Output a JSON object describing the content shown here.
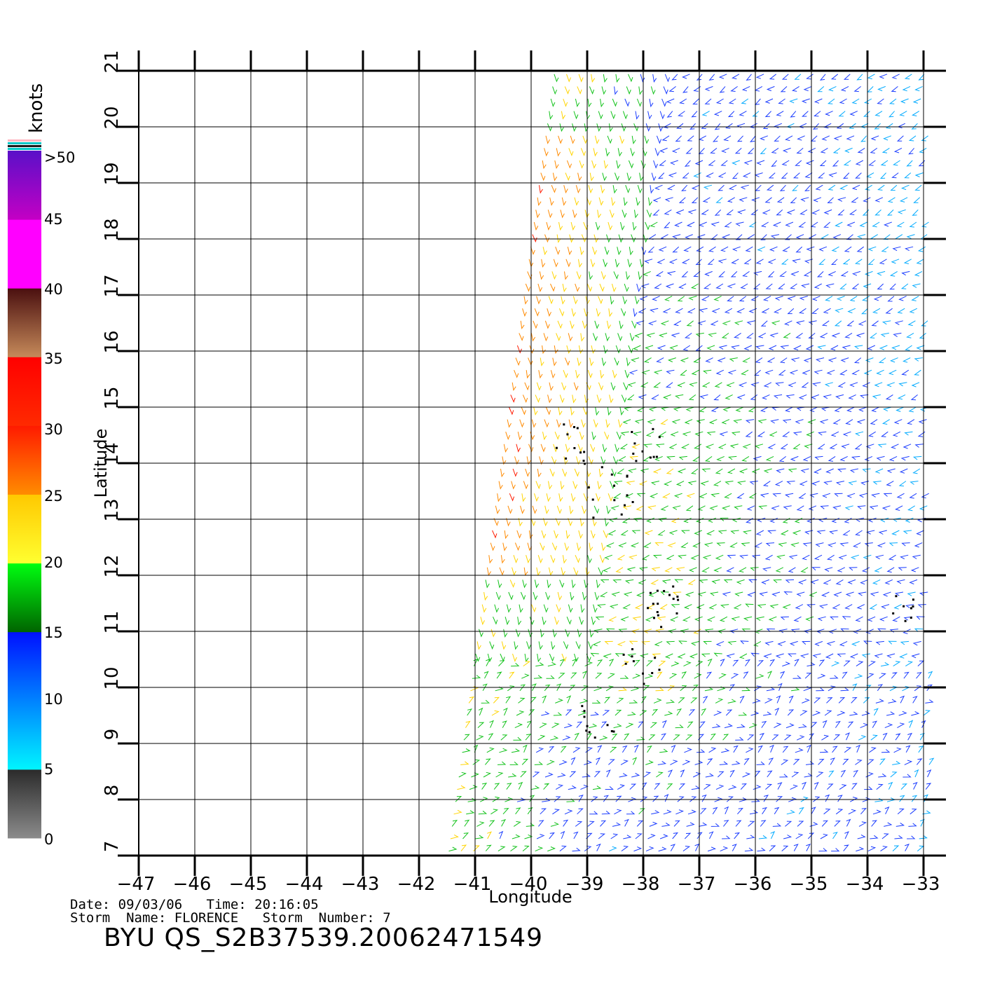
{
  "colorbar": {
    "unit": "knots",
    "labels": [
      "0",
      "5",
      "10",
      "15",
      "20",
      "25",
      "30",
      "35",
      "40",
      "45",
      ">50"
    ],
    "bands": [
      {
        "from": 0,
        "to": 5,
        "top": "#2a2a2a",
        "bottom": "#8c8c8c"
      },
      {
        "from": 5,
        "to": 15,
        "top": "#0010ff",
        "bottom": "#00f5ff"
      },
      {
        "from": 15,
        "to": 20,
        "top": "#00ff10",
        "bottom": "#006400"
      },
      {
        "from": 20,
        "to": 25,
        "top": "#ffc800",
        "bottom": "#ffff30"
      },
      {
        "from": 25,
        "to": 30,
        "top": "#ff1a00",
        "bottom": "#ff8c00"
      },
      {
        "from": 30,
        "to": 35,
        "top": "#ff0000",
        "bottom": "#ff2a00"
      },
      {
        "from": 35,
        "to": 40,
        "top": "#4a0f0f",
        "bottom": "#c68a5a"
      },
      {
        "from": 40,
        "to": 45,
        "top": "#ff00ff",
        "bottom": "#ff00ff"
      },
      {
        "from": 45,
        "to": 50,
        "top": "#5a10c8",
        "bottom": "#c400c4"
      }
    ],
    "top_stripes": [
      "#ffb6c1",
      "#00c8c8",
      "#1a1a1a",
      "#00c8c8"
    ]
  },
  "map": {
    "xlabel": "Longitude",
    "ylabel": "Latitude",
    "lon_range": [
      -47,
      -33
    ],
    "lat_range": [
      7,
      21
    ],
    "lon_ticks": [
      "-47",
      "-46",
      "-45",
      "-44",
      "-43",
      "-42",
      "-41",
      "-40",
      "-39",
      "-38",
      "-37",
      "-36",
      "-35",
      "-34",
      "-33"
    ],
    "lat_ticks": [
      "7",
      "8",
      "9",
      "10",
      "11",
      "12",
      "13",
      "14",
      "15",
      "16",
      "17",
      "18",
      "19",
      "20",
      "21"
    ],
    "grid": true,
    "swath_corners_lonlat": [
      [
        -39.6,
        21
      ],
      [
        -33,
        21
      ],
      [
        -33,
        7
      ],
      [
        -41.5,
        7
      ]
    ],
    "rain_flag_color": "#000000"
  },
  "caption": {
    "date_label": "Date:",
    "date": "09/03/06",
    "time_label": "Time:",
    "time": "20:16:05",
    "storm_name_label": "Storm  Name:",
    "storm_name": "FLORENCE",
    "storm_number_label": "Storm  Number:",
    "storm_number": "7"
  },
  "product_id": "BYU  QS_S2B37539.20062471549"
}
